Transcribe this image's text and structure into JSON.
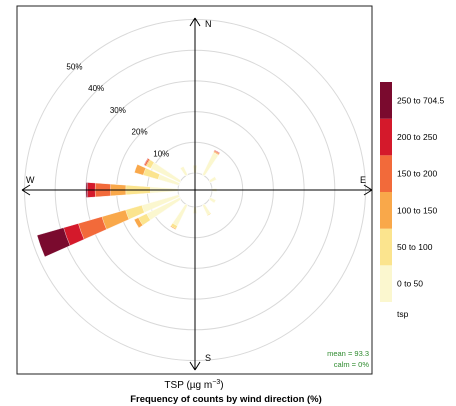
{
  "chart_data": {
    "type": "windrose",
    "compass": {
      "north": "N",
      "south": "S",
      "east": "E",
      "west": "W"
    },
    "ring_labels": [
      "10%",
      "20%",
      "30%",
      "40%",
      "50%"
    ],
    "ring_values": [
      10,
      20,
      30,
      40,
      50
    ],
    "max_radius_value": 57,
    "calm_radius_value": 2.5,
    "stats": {
      "mean": "mean = 93.3",
      "calm": "calm = 0%"
    },
    "xlabel": "TSP (µg m⁻³)",
    "xlabel_main": "TSP (µg m",
    "xlabel_sup": "−3",
    "xlabel_close": ")",
    "title": "Frequency of counts by wind direction (%)",
    "legend": {
      "title": "tsp",
      "bins": [
        {
          "label": "0 to 50",
          "color": "#FBF7CF"
        },
        {
          "label": "50 to 100",
          "color": "#FBE48E"
        },
        {
          "label": "100 to 150",
          "color": "#F9A84A"
        },
        {
          "label": "150 to 200",
          "color": "#F26A3A"
        },
        {
          "label": "200 to 250",
          "color": "#D4192B"
        },
        {
          "label": "250 to 704.5",
          "color": "#7A0A2E"
        }
      ]
    },
    "series": [
      {
        "direction": 30,
        "cumulative": [
          8,
          8.2,
          8.5,
          8.8,
          9.0,
          9.0
        ]
      },
      {
        "direction": 60,
        "cumulative": [
          2.2,
          2.2,
          2.2,
          2.2,
          2.2,
          2.2
        ]
      },
      {
        "direction": 90,
        "cumulative": [
          1.5,
          1.5,
          1.5,
          1.5,
          1.5,
          1.5
        ]
      },
      {
        "direction": 120,
        "cumulative": [
          2.0,
          2.0,
          2.0,
          2.0,
          2.0,
          2.0
        ]
      },
      {
        "direction": 150,
        "cumulative": [
          3.5,
          3.8,
          3.8,
          3.8,
          3.8,
          3.8
        ]
      },
      {
        "direction": 180,
        "cumulative": [
          2.0,
          2.0,
          2.0,
          2.0,
          2.0,
          2.0
        ]
      },
      {
        "direction": 210,
        "cumulative": [
          7.5,
          8.5,
          8.8,
          8.8,
          8.8,
          8.8
        ]
      },
      {
        "direction": 240,
        "cumulative": [
          12.0,
          15.0,
          16.5,
          16.5,
          16.5,
          16.5
        ]
      },
      {
        "direction": 250,
        "cumulative": [
          12.5,
          18.0,
          26.0,
          34.0,
          39.0,
          48.0
        ]
      },
      {
        "direction": 270,
        "cumulative": [
          9.0,
          17.0,
          22.0,
          27.0,
          29.5,
          30.0
        ]
      },
      {
        "direction": 290,
        "cumulative": [
          7.0,
          12.0,
          15.0,
          15.0,
          15.0,
          15.0
        ]
      },
      {
        "direction": 300,
        "cumulative": [
          10.5,
          12.0,
          12.3,
          12.8,
          13.0,
          13.0
        ]
      },
      {
        "direction": 330,
        "cumulative": [
          3.0,
          3.0,
          3.0,
          3.0,
          3.0,
          3.0
        ]
      },
      {
        "direction": 360,
        "cumulative": [
          2.5,
          2.5,
          2.5,
          2.5,
          2.5,
          2.5
        ]
      }
    ],
    "petal_width_deg": 8
  }
}
